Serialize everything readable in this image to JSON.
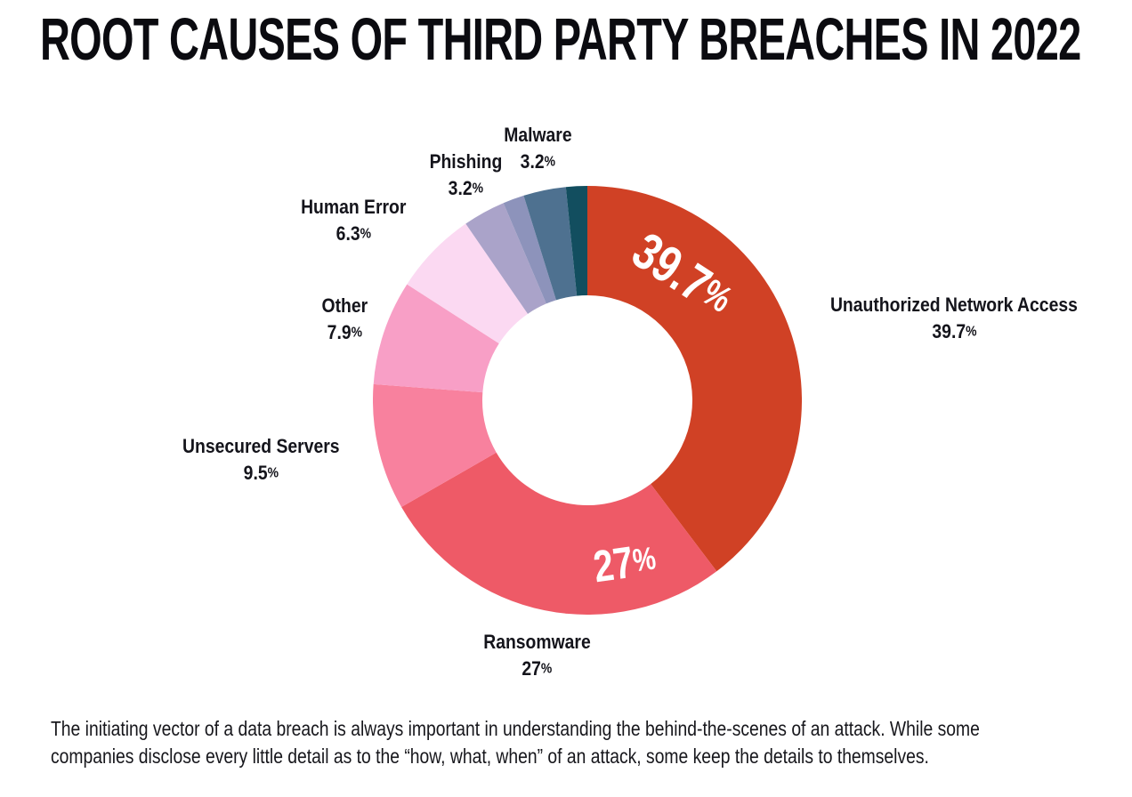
{
  "title": "ROOT CAUSES OF THIRD PARTY BREACHES IN 2022",
  "caption": {
    "lines": [
      "The initiating vector of a data breach is always important in understanding the behind-the-scenes of an attack. While some",
      "companies disclose every little detail as to the “how, what, when” of an attack, some keep the details to themselves."
    ]
  },
  "chart_data": {
    "type": "pie",
    "variant": "donut",
    "title": "ROOT CAUSES OF THIRD PARTY BREACHES IN 2022",
    "start_angle_deg": 0,
    "direction": "clockwise",
    "inner_radius_ratio": 0.49,
    "background": "#ffffff",
    "inside_value_color": "#ffffff",
    "label_color": "#14141b",
    "segments": [
      {
        "label": "Unauthorized Network Access",
        "value": 39.7,
        "display": "39.7%",
        "color": "#d04125",
        "value_shown_inside": true
      },
      {
        "label": "Ransomware",
        "value": 27,
        "display": "27%",
        "color": "#ee5a67",
        "value_shown_inside": true
      },
      {
        "label": "Unsecured Servers",
        "value": 9.5,
        "display": "9.5%",
        "color": "#f8819e",
        "value_shown_inside": false
      },
      {
        "label": "Other",
        "value": 7.9,
        "display": "7.9%",
        "color": "#f89fc6",
        "value_shown_inside": false
      },
      {
        "label": "Human Error",
        "value": 6.3,
        "display": "6.3%",
        "color": "#fbd9f2",
        "value_shown_inside": false
      },
      {
        "label": "Phishing",
        "value": 3.2,
        "display": "3.2%",
        "color": "#aaa3c9",
        "value_shown_inside": false
      },
      {
        "label": "",
        "value": 1.6,
        "display": "",
        "color": "#8d93bb",
        "value_shown_inside": false
      },
      {
        "label": "Malware",
        "value": 3.2,
        "display": "3.2%",
        "color": "#4e7190",
        "value_shown_inside": false
      },
      {
        "label": "",
        "value": 1.6,
        "display": "",
        "color": "#124e5f",
        "value_shown_inside": false
      }
    ]
  }
}
